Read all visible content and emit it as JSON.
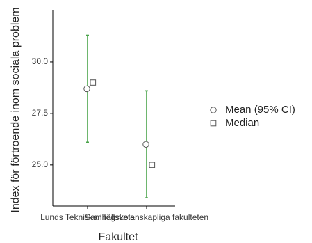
{
  "chart_data": {
    "type": "scatter",
    "xlabel": "Fakultet",
    "ylabel": "Index för förtroende inom sociala problem",
    "ylim": [
      23.0,
      32.5
    ],
    "yticks": [
      25.0,
      27.5,
      30.0
    ],
    "ytick_labels": [
      "25.0",
      "27.5",
      "30.0"
    ],
    "grid": false,
    "legend_position": "right",
    "categories": [
      "Lunds Tekniska Högskola",
      "Samhällsvetenskapliga fakulteten"
    ],
    "series": [
      {
        "name": "Mean (95% CI)",
        "marker": "circle",
        "values": [
          28.7,
          26.0
        ],
        "ci_lower": [
          26.1,
          23.4
        ],
        "ci_upper": [
          31.3,
          28.6
        ]
      },
      {
        "name": "Median",
        "marker": "square",
        "values": [
          29.0,
          25.0
        ]
      }
    ],
    "colors": {
      "errorbar": "#4aa34a",
      "marker_stroke": "#555555",
      "marker_fill": "#ffffff",
      "axis": "#000000"
    }
  }
}
